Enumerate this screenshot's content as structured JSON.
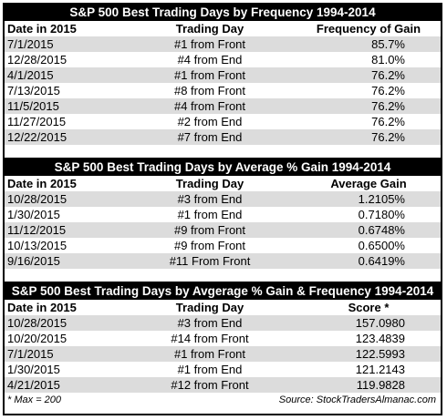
{
  "sections": [
    {
      "title": "S&P 500 Best Trading Days by Frequency 1994-2014",
      "headers": [
        "Date in 2015",
        "Trading Day",
        "Frequency of Gain"
      ],
      "rows": [
        [
          "7/1/2015",
          "#1 from Front",
          "85.7%"
        ],
        [
          "12/28/2015",
          "#4 from End",
          "81.0%"
        ],
        [
          "4/1/2015",
          "#1 from Front",
          "76.2%"
        ],
        [
          "7/13/2015",
          "#8 from Front",
          "76.2%"
        ],
        [
          "11/5/2015",
          "#4 from Front",
          "76.2%"
        ],
        [
          "11/27/2015",
          "#2 from End",
          "76.2%"
        ],
        [
          "12/22/2015",
          "#7 from End",
          "76.2%"
        ]
      ]
    },
    {
      "title": "S&P 500 Best Trading Days by Average % Gain 1994-2014",
      "headers": [
        "Date in 2015",
        "Trading Day",
        "Average Gain"
      ],
      "rows": [
        [
          "10/28/2015",
          "#3 from End",
          "1.2105%"
        ],
        [
          "1/30/2015",
          "#1 from End",
          "0.7180%"
        ],
        [
          "11/12/2015",
          "#9 from Front",
          "0.6748%"
        ],
        [
          "10/13/2015",
          "#9 from Front",
          "0.6500%"
        ],
        [
          "9/16/2015",
          "#11 From Front",
          "0.6419%"
        ]
      ]
    },
    {
      "title": "S&P 500 Best Trading Days by Avgerage % Gain & Frequency 1994-2014",
      "headers": [
        "Date in 2015",
        "Trading Day",
        "Score *"
      ],
      "rows": [
        [
          "10/28/2015",
          "#3 from End",
          "157.0980"
        ],
        [
          "10/20/2015",
          "#14 from Front",
          "123.4839"
        ],
        [
          "7/1/2015",
          "#1 from Front",
          "122.5993"
        ],
        [
          "1/30/2015",
          "#1 from End",
          "121.2143"
        ],
        [
          "4/21/2015",
          "#12 from Front",
          "119.9828"
        ]
      ]
    }
  ],
  "footer": {
    "note": "* Max = 200",
    "source": "Source: StockTradersAlmanac.com"
  }
}
